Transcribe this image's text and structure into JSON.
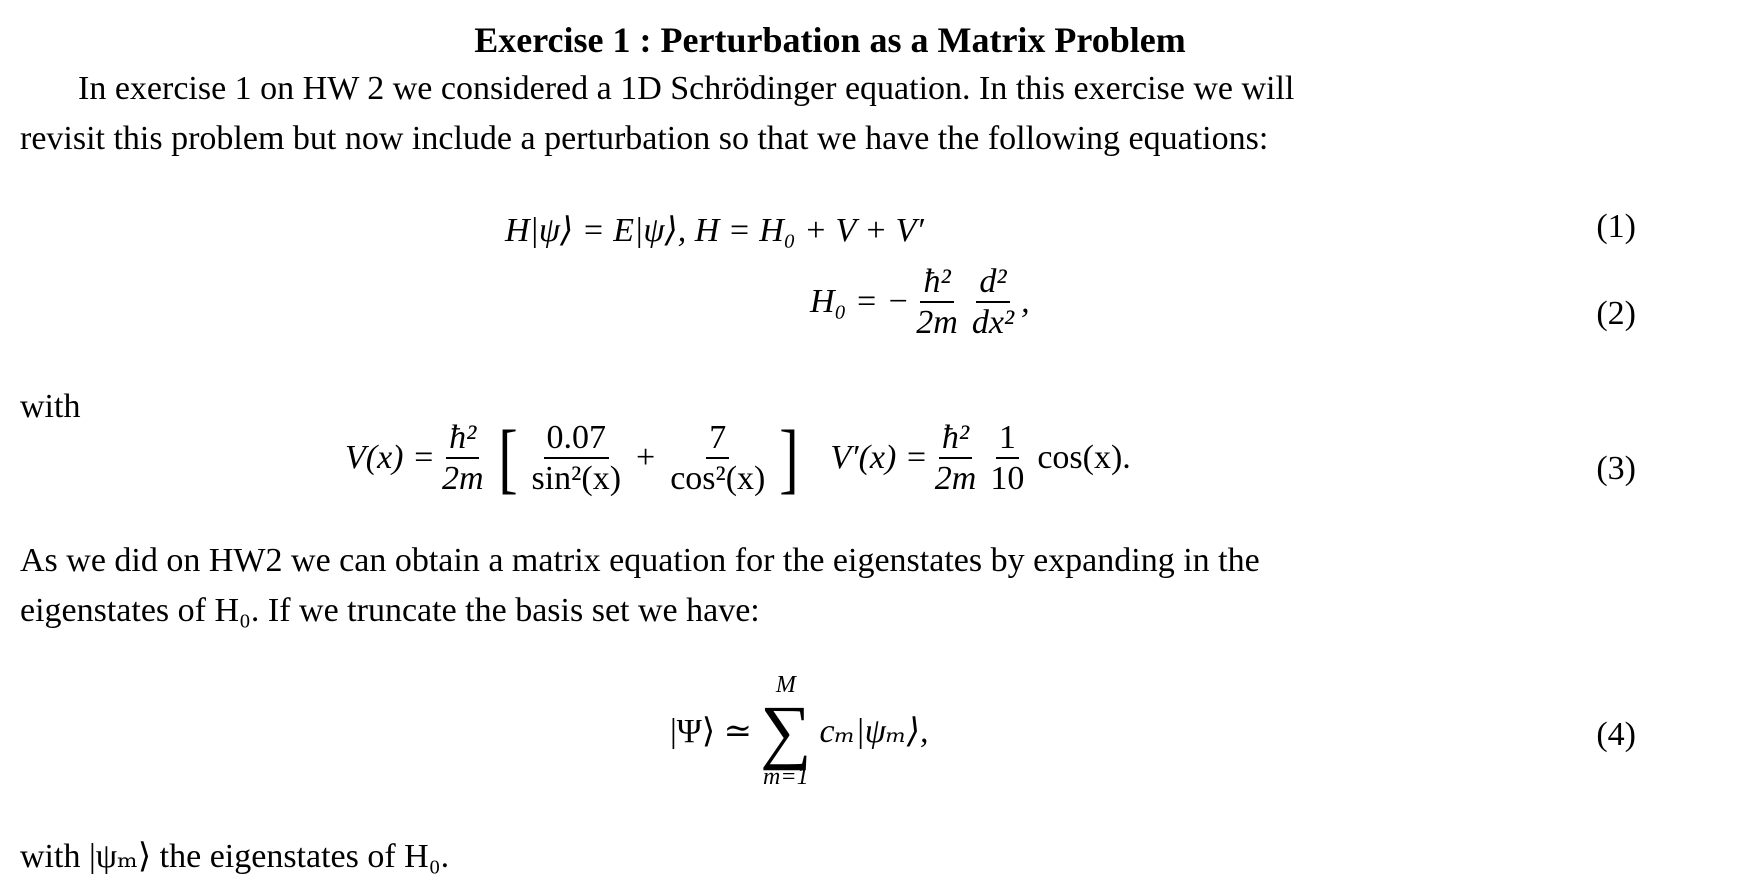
{
  "title": "Exercise 1 : Perturbation as a Matrix Problem",
  "paragraph1": [
    "In exercise 1 on HW 2 we considered a 1D Schrödinger equation. In this exercise we will",
    "revisit this problem but now include a perturbation so that we have the following equations:"
  ],
  "eq1": {
    "text": "H|ψ⟩ = E|ψ⟩,   H = H₀ + V + V′",
    "number": "(1)"
  },
  "eq2": {
    "lhs": "H₀ = −",
    "num1": "ħ²",
    "den1": "2m",
    "num2": "d²",
    "den2": "dx²",
    "tail": ",",
    "number": "(2)"
  },
  "with1": "with",
  "eq3": {
    "lhs": "V(x) =",
    "num1": "ħ²",
    "den1": "2m",
    "f1n": "0.07",
    "f1d": "sin²(x)",
    "plus": "+",
    "f2n": "7",
    "f2d": "cos²(x)",
    "lhs2": "V′(x) =",
    "num3": "ħ²",
    "den3": "2m",
    "num4": "1",
    "den4": "10",
    "tail": "cos(x).",
    "number": "(3)"
  },
  "paragraph2": [
    "As we did on HW2 we can obtain a matrix equation for the eigenstates by expanding in the",
    "eigenstates of H₀. If we truncate the basis set we have:"
  ],
  "eq4": {
    "lhs": "|Ψ⟩ ≃",
    "upper": "M",
    "lower": "m=1",
    "sigma": "∑",
    "rhs": "cₘ|ψₘ⟩,",
    "number": "(4)"
  },
  "last": "with |ψₘ⟩ the eigenstates of H₀."
}
